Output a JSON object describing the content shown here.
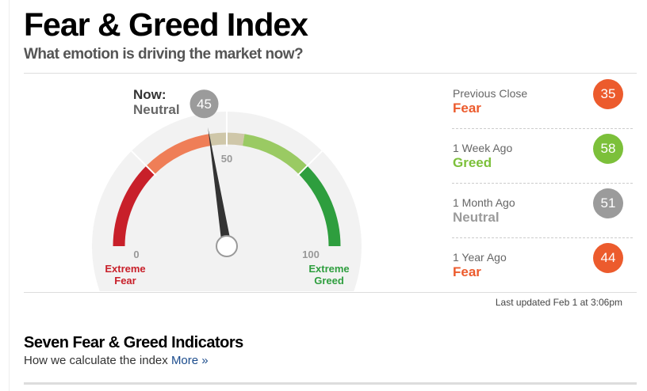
{
  "header": {
    "title": "Fear & Greed Index",
    "subtitle": "What emotion is driving the market now?"
  },
  "gauge": {
    "now_label": "Now:",
    "rating": "Neutral",
    "value": 45,
    "min": 0,
    "mid": 50,
    "max": 100,
    "min_label": "Extreme Fear",
    "max_label": "Extreme Greed",
    "min_color": "#c8202a",
    "max_color": "#2e9e3e"
  },
  "history": [
    {
      "label": "Previous Close",
      "rating": "Fear",
      "value": 35,
      "color": "#ec5b2d"
    },
    {
      "label": "1 Week Ago",
      "rating": "Greed",
      "value": 58,
      "color": "#7cc03a"
    },
    {
      "label": "1 Month Ago",
      "rating": "Neutral",
      "value": 51,
      "color": "#9b9b9b"
    },
    {
      "label": "1 Year Ago",
      "rating": "Fear",
      "value": 44,
      "color": "#ec5b2d"
    }
  ],
  "last_updated": "Last updated Feb 1 at 3:06pm",
  "indicators": {
    "title": "Seven Fear & Greed Indicators",
    "text": "How we calculate the index",
    "link": "More »"
  }
}
